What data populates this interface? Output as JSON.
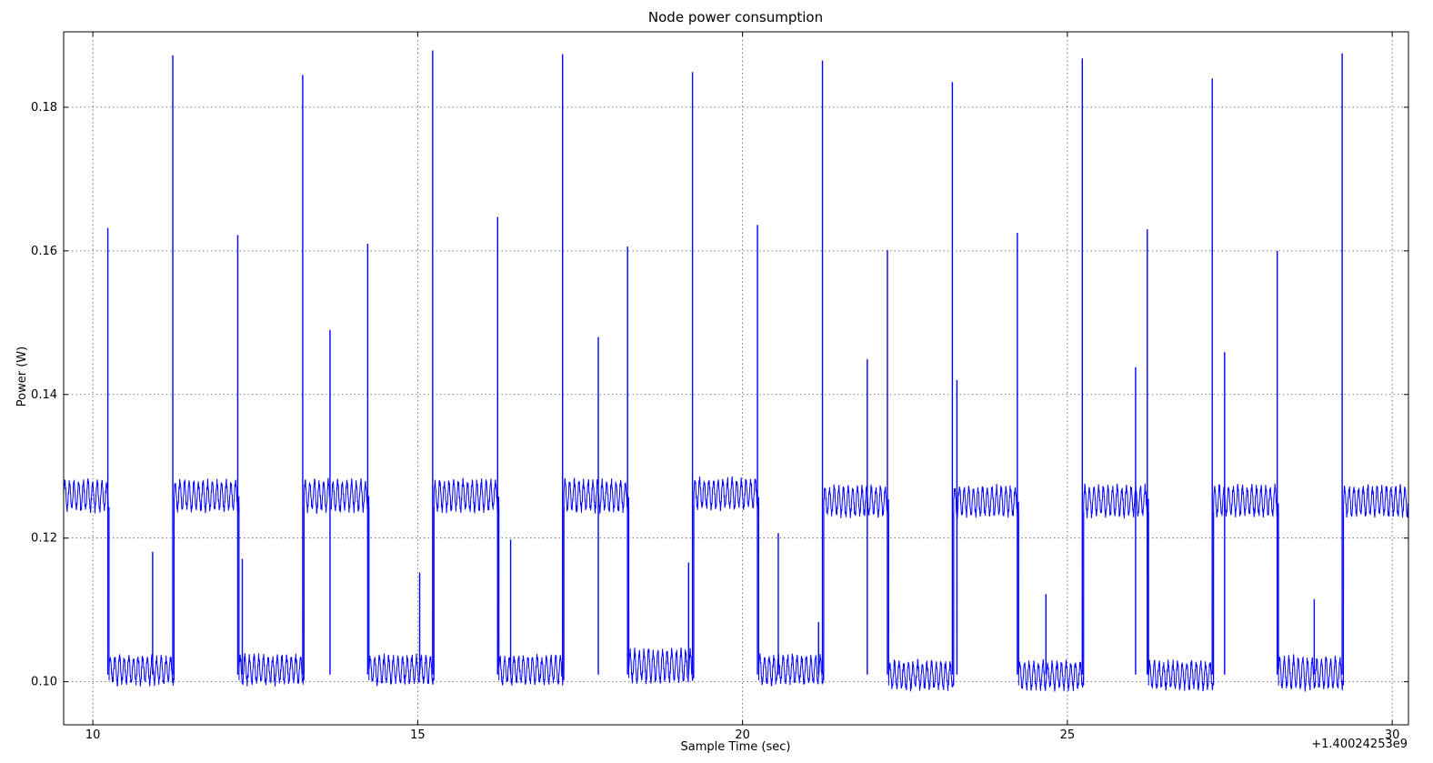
{
  "chart_data": {
    "type": "line",
    "title": "Node power consumption",
    "xlabel": "Sample Time (sec)",
    "ylabel": "Power (W)",
    "x_offset_label": "+1.40024253e9",
    "xlim": [
      9.55,
      30.25
    ],
    "ylim": [
      0.094,
      0.1905
    ],
    "xticks": [
      10,
      15,
      20,
      25,
      30
    ],
    "xtick_labels": [
      "10",
      "15",
      "20",
      "25",
      "30"
    ],
    "yticks": [
      0.1,
      0.12,
      0.14,
      0.16,
      0.18
    ],
    "ytick_labels": [
      "0.10",
      "0.12",
      "0.14",
      "0.16",
      "0.18"
    ],
    "grid": true,
    "series_color": "#0000ff",
    "series": [
      {
        "segments": [
          {
            "start": 9.55,
            "end": 10.25,
            "low": 0.1243,
            "high": 0.1281
          },
          {
            "start": 10.25,
            "end": 11.25,
            "low": 0.1002,
            "high": 0.1037
          },
          {
            "start": 11.25,
            "end": 12.25,
            "low": 0.1243,
            "high": 0.1281
          },
          {
            "start": 12.25,
            "end": 13.25,
            "low": 0.1002,
            "high": 0.1037
          },
          {
            "start": 13.25,
            "end": 14.25,
            "low": 0.1243,
            "high": 0.1281
          },
          {
            "start": 14.25,
            "end": 15.25,
            "low": 0.1002,
            "high": 0.1037
          },
          {
            "start": 15.25,
            "end": 16.25,
            "low": 0.1243,
            "high": 0.1281
          },
          {
            "start": 16.25,
            "end": 17.25,
            "low": 0.1002,
            "high": 0.1037
          },
          {
            "start": 17.25,
            "end": 18.25,
            "low": 0.1243,
            "high": 0.1281
          },
          {
            "start": 18.25,
            "end": 19.25,
            "low": 0.1005,
            "high": 0.1045
          },
          {
            "start": 19.25,
            "end": 20.25,
            "low": 0.1246,
            "high": 0.1283
          },
          {
            "start": 20.25,
            "end": 21.25,
            "low": 0.1002,
            "high": 0.1037
          },
          {
            "start": 21.25,
            "end": 22.25,
            "low": 0.1236,
            "high": 0.1273
          },
          {
            "start": 22.25,
            "end": 23.25,
            "low": 0.0995,
            "high": 0.1029
          },
          {
            "start": 23.25,
            "end": 24.25,
            "low": 0.1236,
            "high": 0.1273
          },
          {
            "start": 24.25,
            "end": 25.25,
            "low": 0.0995,
            "high": 0.1029
          },
          {
            "start": 25.25,
            "end": 26.25,
            "low": 0.1236,
            "high": 0.1273
          },
          {
            "start": 26.25,
            "end": 27.25,
            "low": 0.0995,
            "high": 0.1029
          },
          {
            "start": 27.25,
            "end": 28.25,
            "low": 0.1236,
            "high": 0.1273
          },
          {
            "start": 28.25,
            "end": 29.25,
            "low": 0.0995,
            "high": 0.1035
          },
          {
            "start": 29.25,
            "end": 30.25,
            "low": 0.1236,
            "high": 0.1273
          }
        ],
        "spikes": [
          {
            "x": 10.23,
            "y": 0.1632
          },
          {
            "x": 11.23,
            "y": 0.1872
          },
          {
            "x": 12.23,
            "y": 0.1622
          },
          {
            "x": 13.23,
            "y": 0.1845
          },
          {
            "x": 14.23,
            "y": 0.161
          },
          {
            "x": 15.23,
            "y": 0.1879
          },
          {
            "x": 16.23,
            "y": 0.1647
          },
          {
            "x": 17.23,
            "y": 0.1874
          },
          {
            "x": 18.23,
            "y": 0.1606
          },
          {
            "x": 19.23,
            "y": 0.1849
          },
          {
            "x": 20.23,
            "y": 0.1636
          },
          {
            "x": 21.23,
            "y": 0.1865
          },
          {
            "x": 22.23,
            "y": 0.1601
          },
          {
            "x": 23.23,
            "y": 0.1835
          },
          {
            "x": 24.23,
            "y": 0.1625
          },
          {
            "x": 25.23,
            "y": 0.1868
          },
          {
            "x": 26.23,
            "y": 0.163
          },
          {
            "x": 27.23,
            "y": 0.184
          },
          {
            "x": 28.23,
            "y": 0.16
          },
          {
            "x": 29.23,
            "y": 0.1875
          },
          {
            "x": 10.92,
            "y": 0.1181
          },
          {
            "x": 12.3,
            "y": 0.1171
          },
          {
            "x": 13.65,
            "y": 0.149
          },
          {
            "x": 15.03,
            "y": 0.1152
          },
          {
            "x": 16.43,
            "y": 0.1198
          },
          {
            "x": 17.78,
            "y": 0.148
          },
          {
            "x": 19.17,
            "y": 0.1166
          },
          {
            "x": 20.55,
            "y": 0.1207
          },
          {
            "x": 21.17,
            "y": 0.1083
          },
          {
            "x": 21.92,
            "y": 0.1449
          },
          {
            "x": 23.3,
            "y": 0.142
          },
          {
            "x": 24.67,
            "y": 0.1122
          },
          {
            "x": 26.05,
            "y": 0.1438
          },
          {
            "x": 27.42,
            "y": 0.1459
          },
          {
            "x": 28.8,
            "y": 0.1115
          }
        ]
      }
    ]
  }
}
